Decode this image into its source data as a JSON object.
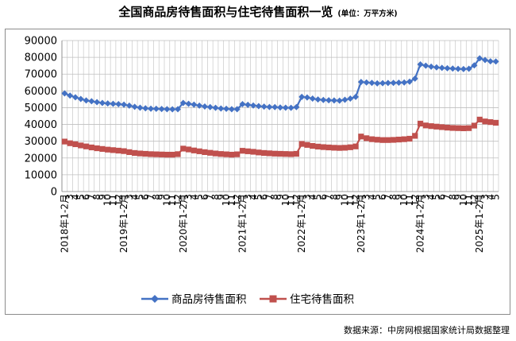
{
  "title": "全国商品房待售面积与住宅待售面积一览",
  "unit": "(单位：万平方米)",
  "source": "数据来源：中房网根据国家统计局数据整理",
  "colors": {
    "series1": "#4472c4",
    "series2": "#c0504d",
    "grid": "#bfbfbf"
  },
  "chart_data": {
    "type": "line",
    "ylim": [
      0,
      90000
    ],
    "yticks": [
      0,
      10000,
      20000,
      30000,
      40000,
      50000,
      60000,
      70000,
      80000,
      90000
    ],
    "x": [
      "2018年1-2月",
      "3",
      "4",
      "5",
      "6",
      "7",
      "8",
      "9",
      "10",
      "11",
      "12",
      "2019年1-2月",
      "3",
      "4",
      "5",
      "6",
      "7",
      "8",
      "9",
      "10",
      "11",
      "12",
      "2020年1-2月",
      "3",
      "4",
      "5",
      "6",
      "7",
      "8",
      "9",
      "10",
      "11",
      "12",
      "2021年1-2月",
      "3",
      "4",
      "5",
      "6",
      "7",
      "8",
      "9",
      "10",
      "11",
      "12",
      "2022年1-2月",
      "3",
      "4",
      "5",
      "6",
      "7",
      "8",
      "9",
      "10",
      "11",
      "12",
      "2023年1-2月",
      "3",
      "4",
      "5",
      "6",
      "7",
      "8",
      "9",
      "10",
      "11",
      "12",
      "2024年1-2月",
      "3",
      "4",
      "5",
      "6",
      "7",
      "8",
      "9",
      "10",
      "11",
      "12",
      "2025年1-2月",
      "3",
      "4",
      "5"
    ],
    "series": [
      {
        "name": "商品房待售面积",
        "marker": "diamond",
        "values": [
          58500,
          57200,
          56200,
          55200,
          54300,
          53800,
          53300,
          52800,
          52500,
          52300,
          52100,
          51800,
          51200,
          50500,
          50000,
          49600,
          49400,
          49300,
          49200,
          49100,
          49000,
          49100,
          52800,
          52300,
          51800,
          51200,
          50700,
          50300,
          49900,
          49500,
          49300,
          49100,
          49100,
          52100,
          51700,
          51300,
          50900,
          50600,
          50400,
          50300,
          50100,
          50000,
          49900,
          50300,
          56400,
          56100,
          55400,
          54900,
          54600,
          54400,
          54300,
          54200,
          54700,
          55400,
          56400,
          65300,
          65000,
          64800,
          64500,
          64600,
          64700,
          64800,
          64900,
          65000,
          65500,
          67300,
          75800,
          75000,
          74400,
          74000,
          73700,
          73500,
          73300,
          73100,
          73000,
          73200,
          75200,
          79400,
          78400,
          77600,
          77500
        ]
      },
      {
        "name": "住宅待售面积",
        "marker": "square",
        "values": [
          29800,
          28800,
          28200,
          27500,
          26900,
          26300,
          25800,
          25400,
          25000,
          24700,
          24400,
          24100,
          23500,
          23000,
          22700,
          22500,
          22300,
          22200,
          22100,
          22000,
          22000,
          22300,
          25600,
          25100,
          24500,
          24000,
          23500,
          23100,
          22700,
          22400,
          22200,
          22000,
          22200,
          24300,
          24000,
          23700,
          23300,
          23000,
          22800,
          22600,
          22500,
          22400,
          22300,
          22500,
          28400,
          27800,
          27200,
          26800,
          26500,
          26300,
          26100,
          26000,
          26100,
          26400,
          26900,
          32800,
          31800,
          31200,
          30900,
          30700,
          30700,
          30800,
          31000,
          31200,
          31500,
          33200,
          40500,
          39400,
          39000,
          38700,
          38400,
          38100,
          37900,
          37800,
          37700,
          37800,
          39300,
          42900,
          41800,
          41400,
          41000
        ]
      }
    ],
    "legend": "bottom",
    "grid": true
  }
}
